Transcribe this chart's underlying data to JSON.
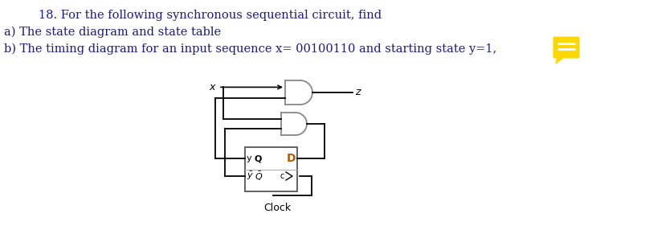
{
  "title_line1": "18. For the following synchronous sequential circuit, find",
  "title_line2": "a) The state diagram and state table",
  "title_line3": "b) The timing diagram for an input sequence x= 00100110 and starting state y=1,",
  "bg_color": "#ffffff",
  "text_color": "#1a1a8c",
  "gate_color": "#888888",
  "D_color": "#b85c00",
  "comment_icon_color": "#FFD700",
  "lw": 1.3
}
